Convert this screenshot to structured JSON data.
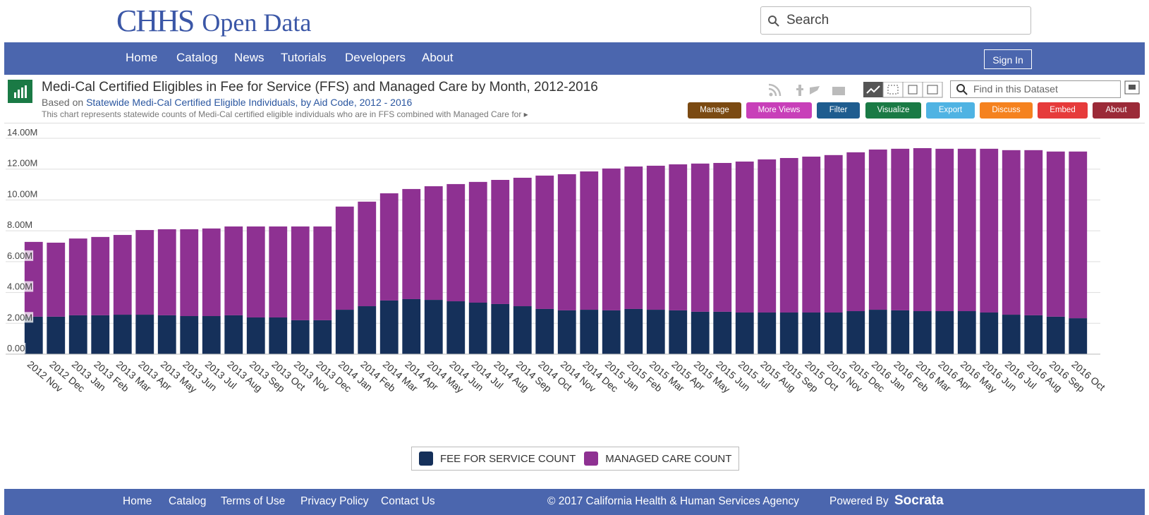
{
  "header": {
    "logo": "CHHS",
    "logo_suffix": "Open Data",
    "search_placeholder": "Search"
  },
  "nav": {
    "items": [
      "Home",
      "Catalog",
      "News",
      "Tutorials",
      "Developers",
      "About"
    ],
    "sign_in": "Sign In"
  },
  "dataset": {
    "title": "Medi-Cal Certified Eligibles in Fee for Service (FFS) and Managed Care by Month, 2012-2016",
    "based_on": "Based on",
    "source_link": "Statewide Medi-Cal Certified Eligible Individuals, by Aid Code, 2012 - 2016",
    "description": "This chart represents statewide counts of Medi-Cal certified eligible individuals who are in FFS combined with Managed Care for",
    "find_placeholder": "Find in this Dataset",
    "buttons": [
      "Manage",
      "More Views",
      "Filter",
      "Visualize",
      "Export",
      "Discuss",
      "Embed",
      "About"
    ]
  },
  "chart_data": {
    "type": "bar",
    "stacked": true,
    "categories": [
      "2012 Nov",
      "2012 Dec",
      "2013 Jan",
      "2013 Feb",
      "2013 Mar",
      "2013 Apr",
      "2013 May",
      "2013 Jun",
      "2013 Jul",
      "2013 Aug",
      "2013 Sep",
      "2013 Oct",
      "2013 Nov",
      "2013 Dec",
      "2014 Jan",
      "2014 Feb",
      "2014 Mar",
      "2014 Apr",
      "2014 May",
      "2014 Jun",
      "2014 Jul",
      "2014 Aug",
      "2014 Sep",
      "2014 Oct",
      "2014 Nov",
      "2014 Dec",
      "2015 Jan",
      "2015 Feb",
      "2015 Mar",
      "2015 Apr",
      "2015 May",
      "2015 Jun",
      "2015 Jul",
      "2015 Aug",
      "2015 Sep",
      "2015 Oct",
      "2015 Nov",
      "2015 Dec",
      "2016 Jan",
      "2016 Feb",
      "2016 Mar",
      "2016 Apr",
      "2016 May",
      "2016 Jun",
      "2016 Jul",
      "2016 Aug",
      "2016 Sep",
      "2016 Oct"
    ],
    "series": [
      {
        "name": "FEE FOR SERVICE COUNT",
        "color": "#15305a",
        "values": [
          2430000,
          2430000,
          2520000,
          2520000,
          2560000,
          2560000,
          2520000,
          2470000,
          2470000,
          2520000,
          2380000,
          2380000,
          2200000,
          2200000,
          2880000,
          3110000,
          3480000,
          3570000,
          3520000,
          3430000,
          3340000,
          3250000,
          3110000,
          2930000,
          2840000,
          2880000,
          2840000,
          2930000,
          2880000,
          2840000,
          2750000,
          2750000,
          2700000,
          2700000,
          2700000,
          2700000,
          2700000,
          2790000,
          2880000,
          2840000,
          2790000,
          2790000,
          2790000,
          2700000,
          2560000,
          2520000,
          2430000,
          2330000
        ]
      },
      {
        "name": "MANAGED CARE COUNT",
        "color": "#8e3192",
        "values": [
          4850000,
          4800000,
          4980000,
          5080000,
          5170000,
          5490000,
          5580000,
          5630000,
          5680000,
          5760000,
          5900000,
          5900000,
          6080000,
          6080000,
          6690000,
          6780000,
          6950000,
          7140000,
          7370000,
          7600000,
          7830000,
          8050000,
          8330000,
          8650000,
          8830000,
          8970000,
          9200000,
          9240000,
          9340000,
          9470000,
          9610000,
          9650000,
          9790000,
          9930000,
          10020000,
          10110000,
          10210000,
          10300000,
          10390000,
          10480000,
          10570000,
          10530000,
          10530000,
          10620000,
          10670000,
          10710000,
          10710000,
          10810000
        ]
      }
    ],
    "ylim": [
      0,
      14000000
    ],
    "yticks": [
      {
        "value": 0,
        "label": "0.00"
      },
      {
        "value": 2000000,
        "label": "2.00M"
      },
      {
        "value": 4000000,
        "label": "4.00M"
      },
      {
        "value": 6000000,
        "label": "6.00M"
      },
      {
        "value": 8000000,
        "label": "8.00M"
      },
      {
        "value": 10000000,
        "label": "10.00M"
      },
      {
        "value": 12000000,
        "label": "12.00M"
      },
      {
        "value": 14000000,
        "label": "14.00M"
      }
    ],
    "grid": true
  },
  "footer": {
    "links": [
      "Home",
      "Catalog",
      "Terms of Use",
      "Privacy Policy",
      "Contact Us"
    ],
    "copyright": "© 2017 California Health & Human Services Agency",
    "powered_by": "Powered By",
    "brand": "Socrata"
  }
}
